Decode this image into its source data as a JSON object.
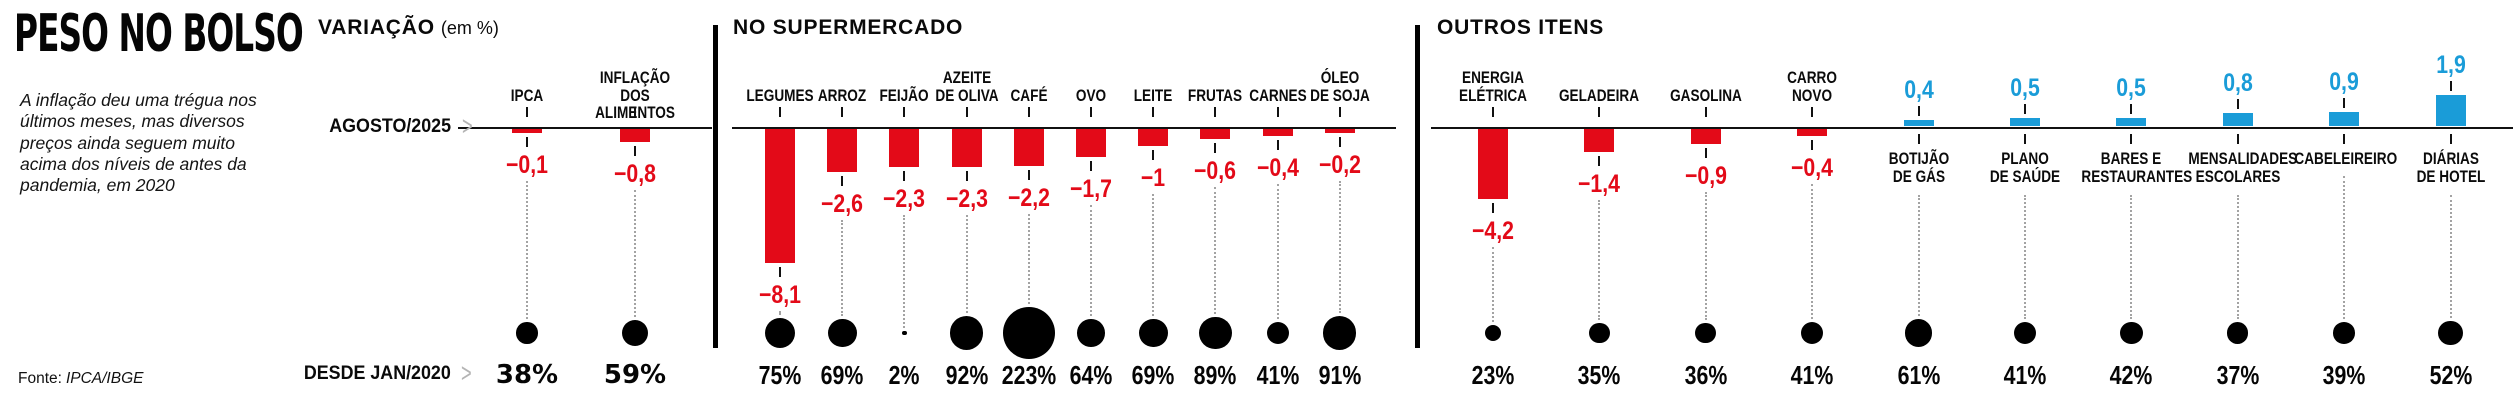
{
  "header": {
    "title": "PESO NO BOLSO",
    "description": "A inflação deu uma trégua nos\núltimos meses, mas diversos\npreços ainda seguem muito\nacima dos níveis de antes da\npandemia, em 2020",
    "source_prefix": "Fonte:",
    "source_name": "IPCA/IBGE"
  },
  "row_labels": {
    "top": "AGOSTO/2025",
    "bottom": "DESDE JAN/2020",
    "chevron": ">"
  },
  "colors": {
    "negative": "#e30a18",
    "positive": "#1a9cd8",
    "bubble": "#000000",
    "chevron": "#b4b4b4"
  },
  "chart_data": {
    "type": "bar",
    "title": "PESO NO BOLSO",
    "bar_series_label": "AGOSTO/2025 — variação (em %)",
    "bubble_series_label": "DESDE JAN/2020 — variação acumulada (%)",
    "legend_position": "none",
    "grid": false,
    "groups": [
      {
        "id": "variacao",
        "title": "VARIAÇÃO",
        "title_suffix": "(em %)",
        "items": [
          {
            "label": "IPCA",
            "value": -0.1,
            "since_pct": 38
          },
          {
            "label": "INFLAÇÃO\nDOS ALIMENTOS",
            "value": -0.8,
            "since_pct": 59
          }
        ]
      },
      {
        "id": "supermercado",
        "title": "NO SUPERMERCADO",
        "title_suffix": "",
        "items": [
          {
            "label": "LEGUMES",
            "value": -8.1,
            "since_pct": 75
          },
          {
            "label": "ARROZ",
            "value": -2.6,
            "since_pct": 69
          },
          {
            "label": "FEIJÃO",
            "value": -2.3,
            "since_pct": 2
          },
          {
            "label": "AZEITE\nDE OLIVA",
            "value": -2.3,
            "since_pct": 92
          },
          {
            "label": "CAFÉ",
            "value": -2.2,
            "since_pct": 223
          },
          {
            "label": "OVO",
            "value": -1.7,
            "since_pct": 64
          },
          {
            "label": "LEITE",
            "value": -1,
            "since_pct": 69
          },
          {
            "label": "FRUTAS",
            "value": -0.6,
            "since_pct": 89
          },
          {
            "label": "CARNES",
            "value": -0.4,
            "since_pct": 41
          },
          {
            "label": "ÓLEO\nDE SOJA",
            "value": -0.2,
            "since_pct": 91
          }
        ]
      },
      {
        "id": "outros",
        "title": "OUTROS ITENS",
        "title_suffix": "",
        "items": [
          {
            "label": "ENERGIA\nELÉTRICA",
            "value": -4.2,
            "since_pct": 23
          },
          {
            "label": "GELADEIRA",
            "value": -1.4,
            "since_pct": 35
          },
          {
            "label": "GASOLINA",
            "value": -0.9,
            "since_pct": 36
          },
          {
            "label": "CARRO\nNOVO",
            "value": -0.4,
            "since_pct": 41
          },
          {
            "label": "BOTIJÃO\nDE GÁS",
            "value": 0.4,
            "since_pct": 61
          },
          {
            "label": "PLANO\nDE SAÚDE",
            "value": 0.5,
            "since_pct": 41
          },
          {
            "label": "BARES E\nRESTAURANTES",
            "value": 0.5,
            "since_pct": 42
          },
          {
            "label": "MENSALIDADES\nESCOLARES",
            "value": 0.8,
            "since_pct": 37
          },
          {
            "label": "CABELEIREIRO",
            "value": 0.9,
            "since_pct": 39
          },
          {
            "label": "DIÁRIAS\nDE HOTEL",
            "value": 1.9,
            "since_pct": 52
          }
        ]
      }
    ]
  }
}
